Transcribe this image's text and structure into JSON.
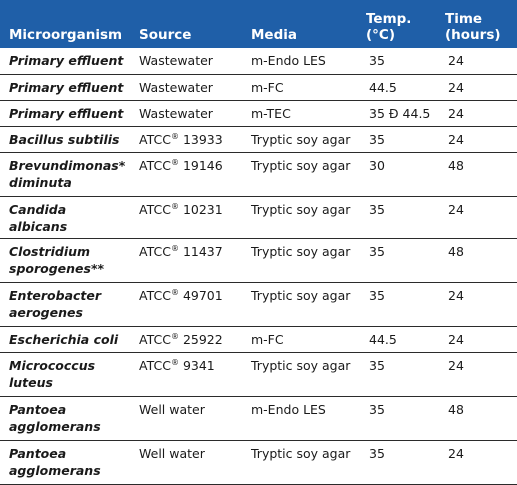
{
  "header": {
    "microorganism": "Microorganism",
    "source": "Source",
    "media": "Media",
    "temp_line1": "Temp.",
    "temp_line2": "(°C)",
    "time_line1": "Time",
    "time_line2": "(hours)"
  },
  "rows": [
    {
      "org": "Primary effluent",
      "src": "Wastewater",
      "src_code": "",
      "media": "m-Endo LES",
      "temp": "35",
      "time": "24"
    },
    {
      "org": "Primary effluent",
      "src": "Wastewater",
      "src_code": "",
      "media": "m-FC",
      "temp": "44.5",
      "time": "24"
    },
    {
      "org": "Primary effluent",
      "src": "Wastewater",
      "src_code": "",
      "media": "m-TEC",
      "temp": "35 Ð 44.5",
      "time": "24"
    },
    {
      "org": "Bacillus subtilis",
      "src": "ATCC",
      "src_code": "13933",
      "media": "Tryptic soy agar",
      "temp": "35",
      "time": "24"
    },
    {
      "org": "Brevundimonas* diminuta",
      "src": "ATCC",
      "src_code": "19146",
      "media": "Tryptic soy agar",
      "temp": "30",
      "time": "48"
    },
    {
      "org": "Candida albicans",
      "src": "ATCC",
      "src_code": "10231",
      "media": "Tryptic soy agar",
      "temp": "35",
      "time": "24"
    },
    {
      "org": "Clostridium sporogenes**",
      "src": "ATCC",
      "src_code": "11437",
      "media": "Tryptic soy agar",
      "temp": "35",
      "time": "48"
    },
    {
      "org": "Enterobacter aerogenes",
      "src": "ATCC",
      "src_code": "49701",
      "media": "Tryptic soy agar",
      "temp": "35",
      "time": "24"
    },
    {
      "org": "Escherichia coli",
      "src": "ATCC",
      "src_code": "25922",
      "media": "m-FC",
      "temp": "44.5",
      "time": "24"
    },
    {
      "org": "Micrococcus luteus",
      "src": "ATCC",
      "src_code": "9341",
      "media": "Tryptic soy agar",
      "temp": "35",
      "time": "24"
    },
    {
      "org": "Pantoea agglomerans",
      "src": "Well water",
      "src_code": "",
      "media": "m-Endo LES",
      "temp": "35",
      "time": "48"
    },
    {
      "org": "Pantoea agglomerans",
      "src": "Well water",
      "src_code": "",
      "media": "Tryptic soy agar",
      "temp": "35",
      "time": "24"
    }
  ],
  "registered_mark": "®"
}
